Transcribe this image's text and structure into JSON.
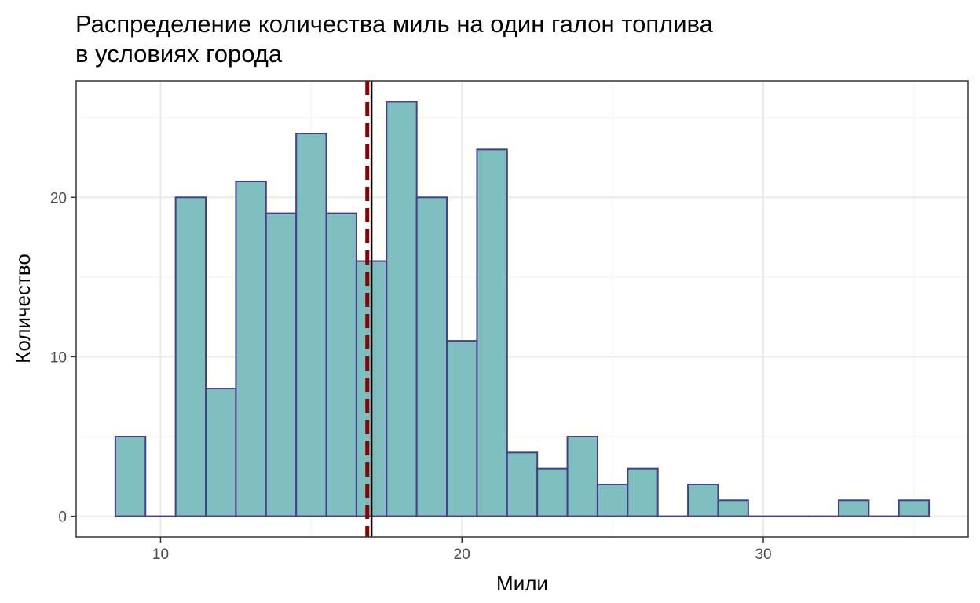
{
  "chart_data": {
    "type": "bar",
    "title": "Распределение количества миль на один галон топлива\nв условиях города",
    "xlabel": "Мили",
    "ylabel": "Количество",
    "bin_width": 1,
    "bins": [
      {
        "x": 9,
        "count": 5
      },
      {
        "x": 10,
        "count": 0
      },
      {
        "x": 11,
        "count": 20
      },
      {
        "x": 12,
        "count": 8
      },
      {
        "x": 13,
        "count": 21
      },
      {
        "x": 14,
        "count": 19
      },
      {
        "x": 15,
        "count": 24
      },
      {
        "x": 16,
        "count": 19
      },
      {
        "x": 17,
        "count": 16
      },
      {
        "x": 18,
        "count": 26
      },
      {
        "x": 19,
        "count": 20
      },
      {
        "x": 20,
        "count": 11
      },
      {
        "x": 21,
        "count": 23
      },
      {
        "x": 22,
        "count": 4
      },
      {
        "x": 23,
        "count": 3
      },
      {
        "x": 24,
        "count": 5
      },
      {
        "x": 25,
        "count": 2
      },
      {
        "x": 26,
        "count": 3
      },
      {
        "x": 27,
        "count": 0
      },
      {
        "x": 28,
        "count": 2
      },
      {
        "x": 29,
        "count": 1
      },
      {
        "x": 30,
        "count": 0
      },
      {
        "x": 31,
        "count": 0
      },
      {
        "x": 32,
        "count": 0
      },
      {
        "x": 33,
        "count": 1
      },
      {
        "x": 34,
        "count": 0
      },
      {
        "x": 35,
        "count": 1
      }
    ],
    "xlim": [
      7.2,
      36.8
    ],
    "ylim": [
      -1.3,
      27.3
    ],
    "xticks": [
      10,
      20,
      30
    ],
    "yticks": [
      0,
      10,
      20
    ],
    "reference_lines": [
      {
        "name": "mean",
        "value": 16.86,
        "style": "dashed",
        "color": "#8b0000"
      },
      {
        "name": "median",
        "value": 17,
        "style": "solid",
        "color": "#000000"
      }
    ],
    "bar_fill": "#7fbfc0",
    "bar_stroke": "#483d8b",
    "grid": true,
    "theme": "bw"
  }
}
